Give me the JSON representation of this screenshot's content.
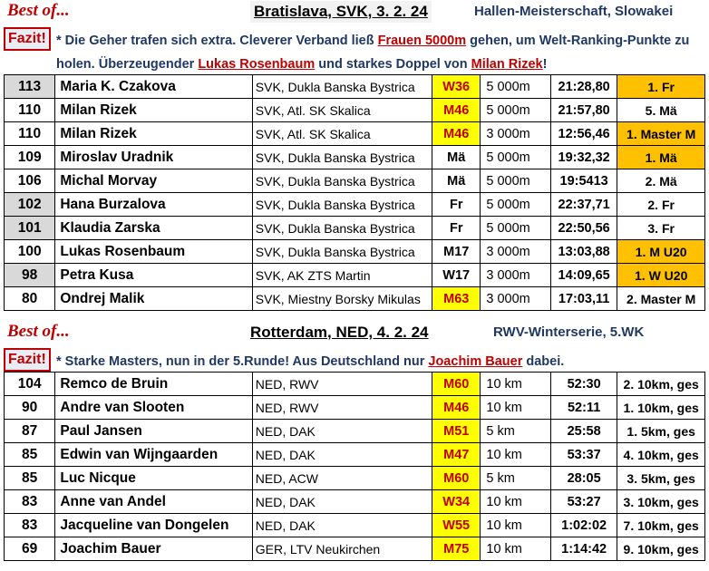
{
  "sections": [
    {
      "best_of": "Best of...",
      "title": "Bratislava, SVK, 3. 2. 24",
      "subtitle": "Hallen-Meisterschaft, Slowakei",
      "fazit_label": "Fazit!",
      "fazit_parts": [
        {
          "text": "* Die Geher trafen sich extra. Cleverer Verband ließ ",
          "hl": false
        },
        {
          "text": "Frauen 5000m",
          "hl": true
        },
        {
          "text": " gehen, um Welt-Ranking-Punkte zu holen. Überzeugender ",
          "hl": false
        },
        {
          "text": "Lukas Rosenbaum",
          "hl": true
        },
        {
          "text": " und starkes Doppel von ",
          "hl": false
        },
        {
          "text": "Milan Rizek",
          "hl": true
        },
        {
          "text": "!",
          "hl": false
        }
      ],
      "rows": [
        {
          "points": "113",
          "name": "Maria K. Czakova",
          "club": "SVK, Dukla Banska Bystrica",
          "cls": "W36",
          "distance": "5 000m",
          "time": "21:28,80",
          "place": "1. Fr",
          "points_gray": true,
          "cls_yellow": true,
          "place_orange": true
        },
        {
          "points": "110",
          "name": "Milan Rizek",
          "club": "SVK, Atl. SK Skalica",
          "cls": "M46",
          "distance": "5 000m",
          "time": "21:57,80",
          "place": "5. Mä",
          "points_gray": false,
          "cls_yellow": true,
          "place_orange": false
        },
        {
          "points": "110",
          "name": "Milan Rizek",
          "club": "SVK, Atl. SK Skalica",
          "cls": "M46",
          "distance": "3 000m",
          "time": "12:56,46",
          "place": "1. Master M",
          "points_gray": false,
          "cls_yellow": true,
          "place_orange": true
        },
        {
          "points": "109",
          "name": "Miroslav Uradnik",
          "club": "SVK, Dukla Banska Bystrica",
          "cls": "Mä",
          "distance": "5 000m",
          "time": "19:32,32",
          "place": "1. Mä",
          "points_gray": false,
          "cls_yellow": false,
          "place_orange": true
        },
        {
          "points": "106",
          "name": "Michal Morvay",
          "club": "SVK, Dukla Banska Bystrica",
          "cls": "Mä",
          "distance": "5 000m",
          "time": "19:5413",
          "place": "2. Mä",
          "points_gray": false,
          "cls_yellow": false,
          "place_orange": false
        },
        {
          "points": "102",
          "name": "Hana Burzalova",
          "club": "SVK, Dukla Banska Bystrica",
          "cls": "Fr",
          "distance": "5 000m",
          "time": "22:37,71",
          "place": "2. Fr",
          "points_gray": true,
          "cls_yellow": false,
          "place_orange": false
        },
        {
          "points": "101",
          "name": "Klaudia Zarska",
          "club": "SVK, Dukla Banska Bystrica",
          "cls": "Fr",
          "distance": "5 000m",
          "time": "22:50,56",
          "place": "3. Fr",
          "points_gray": true,
          "cls_yellow": false,
          "place_orange": false
        },
        {
          "points": "100",
          "name": "Lukas Rosenbaum",
          "club": "SVK, Dukla Banska Bystrica",
          "cls": "M17",
          "distance": "3 000m",
          "time": "13:03,88",
          "place": "1. M U20",
          "points_gray": false,
          "cls_yellow": false,
          "place_orange": true
        },
        {
          "points": "98",
          "name": "Petra Kusa",
          "club": "SVK, AK ZTS Martin",
          "cls": "W17",
          "distance": "3 000m",
          "time": "14:09,65",
          "place": "1. W U20",
          "points_gray": true,
          "cls_yellow": false,
          "place_orange": true
        },
        {
          "points": "80",
          "name": "Ondrej Malik",
          "club": "SVK, Miestny Borsky Mikulas",
          "cls": "M63",
          "distance": "3 000m",
          "time": "17:03,11",
          "place": "2. Master M",
          "points_gray": false,
          "cls_yellow": true,
          "place_orange": false
        }
      ]
    },
    {
      "best_of": "Best of...",
      "title": "Rotterdam, NED, 4. 2. 24",
      "subtitle": "RWV-Winterserie, 5.WK",
      "fazit_label": "Fazit!",
      "fazit_parts": [
        {
          "text": "* Starke Masters, nun in der 5.Runde! Aus Deutschland nur ",
          "hl": false
        },
        {
          "text": "Joachim Bauer",
          "hl": true
        },
        {
          "text": " dabei.",
          "hl": false
        }
      ],
      "rows": [
        {
          "points": "104",
          "name": "Remco de Bruin",
          "club": "NED, RWV",
          "cls": "M60",
          "distance": "10 km",
          "time": "52:30",
          "place": "2. 10km, ges",
          "points_gray": false,
          "cls_yellow": true,
          "place_orange": false
        },
        {
          "points": "90",
          "name": "Andre van Slooten",
          "club": "NED, RWV",
          "cls": "M46",
          "distance": "10 km",
          "time": "52:11",
          "place": "1. 10km, ges",
          "points_gray": false,
          "cls_yellow": true,
          "place_orange": false
        },
        {
          "points": "87",
          "name": "Paul Jansen",
          "club": "NED, DAK",
          "cls": "M51",
          "distance": "5 km",
          "time": "25:58",
          "place": "1. 5km, ges",
          "points_gray": false,
          "cls_yellow": true,
          "place_orange": false
        },
        {
          "points": "85",
          "name": "Edwin van Wijngaarden",
          "club": "NED, DAK",
          "cls": "M47",
          "distance": "10 km",
          "time": "53:37",
          "place": "4. 10km, ges",
          "points_gray": false,
          "cls_yellow": true,
          "place_orange": false
        },
        {
          "points": "85",
          "name": "Luc Nicque",
          "club": "NED, ACW",
          "cls": "M60",
          "distance": "5 km",
          "time": "28:05",
          "place": "3. 5km, ges",
          "points_gray": false,
          "cls_yellow": true,
          "place_orange": false
        },
        {
          "points": "83",
          "name": "Anne van Andel",
          "club": "NED, DAK",
          "cls": "W34",
          "distance": "10 km",
          "time": "53:27",
          "place": "3. 10km, ges",
          "points_gray": false,
          "cls_yellow": true,
          "place_orange": false
        },
        {
          "points": "83",
          "name": "Jacqueline van Dongelen",
          "club": "NED, DAK",
          "cls": "W55",
          "distance": "10 km",
          "time": "1:02:02",
          "place": "7. 10km, ges",
          "points_gray": false,
          "cls_yellow": true,
          "place_orange": false
        },
        {
          "points": "69",
          "name": "Joachim Bauer",
          "club": "GER, LTV Neukirchen",
          "cls": "M75",
          "distance": "10 km",
          "time": "1:14:42",
          "place": "9. 10km, ges",
          "points_gray": false,
          "cls_yellow": true,
          "place_orange": false
        }
      ]
    }
  ],
  "colors": {
    "accent_red": "#c00000",
    "navy": "#1f3864",
    "class_yellow": "#ffff00",
    "place_orange": "#ffc000",
    "points_gray": "#d9d9d9"
  }
}
